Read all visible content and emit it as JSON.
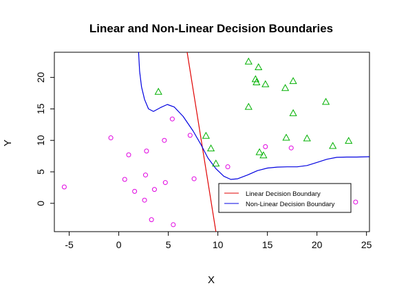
{
  "chart_data": {
    "type": "scatter",
    "title": "Linear and Non-Linear Decision Boundaries",
    "xlabel": "X",
    "ylabel": "Y",
    "xlim": [
      -6.5,
      25.3
    ],
    "ylim": [
      -4.5,
      24
    ],
    "xticks": [
      -5,
      0,
      5,
      10,
      15,
      20,
      25
    ],
    "yticks": [
      0,
      5,
      10,
      15,
      20
    ],
    "grid": false,
    "legend_position": "bottom-right",
    "colors": {
      "class_circle": "#e000e0",
      "class_triangle": "#00b000",
      "linear": "#e00000",
      "nonlinear": "#0000e0"
    },
    "series": [
      {
        "marker": "circle",
        "color": "#e000e0",
        "points": [
          [
            -5.5,
            2.6
          ],
          [
            -0.8,
            10.4
          ],
          [
            0.6,
            3.8
          ],
          [
            1.0,
            7.7
          ],
          [
            1.6,
            1.9
          ],
          [
            2.6,
            0.5
          ],
          [
            2.7,
            4.5
          ],
          [
            2.8,
            8.3
          ],
          [
            3.3,
            -2.6
          ],
          [
            3.6,
            2.2
          ],
          [
            4.6,
            10.0
          ],
          [
            4.7,
            3.3
          ],
          [
            5.4,
            13.4
          ],
          [
            5.5,
            -3.4
          ],
          [
            7.2,
            10.8
          ],
          [
            7.6,
            3.9
          ],
          [
            11.0,
            5.8
          ],
          [
            14.8,
            9.0
          ],
          [
            17.4,
            8.8
          ],
          [
            23.9,
            0.2
          ]
        ]
      },
      {
        "marker": "triangle",
        "color": "#00b000",
        "points": [
          [
            4.0,
            17.7
          ],
          [
            8.8,
            10.7
          ],
          [
            9.3,
            8.7
          ],
          [
            9.8,
            6.3
          ],
          [
            13.1,
            22.5
          ],
          [
            13.1,
            15.3
          ],
          [
            13.8,
            19.7
          ],
          [
            13.9,
            19.2
          ],
          [
            14.1,
            21.6
          ],
          [
            14.2,
            8.1
          ],
          [
            14.6,
            7.6
          ],
          [
            14.8,
            18.9
          ],
          [
            16.8,
            18.3
          ],
          [
            16.9,
            10.4
          ],
          [
            17.6,
            19.4
          ],
          [
            17.6,
            14.3
          ],
          [
            19.0,
            10.3
          ],
          [
            20.9,
            16.1
          ],
          [
            21.6,
            9.1
          ],
          [
            23.2,
            9.9
          ]
        ]
      }
    ],
    "lines": [
      {
        "name": "Linear Decision Boundary",
        "color": "#e00000",
        "points": [
          [
            6.9,
            24.0
          ],
          [
            9.8,
            -4.5
          ]
        ]
      },
      {
        "name": "Non-Linear Decision Boundary",
        "color": "#0000e0",
        "points": [
          [
            2.0,
            24.0
          ],
          [
            2.1,
            21.0
          ],
          [
            2.3,
            18.5
          ],
          [
            2.6,
            16.5
          ],
          [
            3.0,
            15.0
          ],
          [
            3.5,
            14.6
          ],
          [
            4.2,
            15.2
          ],
          [
            4.9,
            15.7
          ],
          [
            5.6,
            15.3
          ],
          [
            6.5,
            13.8
          ],
          [
            7.5,
            11.5
          ],
          [
            8.3,
            9.3
          ],
          [
            9.0,
            7.2
          ],
          [
            9.8,
            5.5
          ],
          [
            10.6,
            4.3
          ],
          [
            11.3,
            3.8
          ],
          [
            12.0,
            3.9
          ],
          [
            13.0,
            4.5
          ],
          [
            14.0,
            5.2
          ],
          [
            15.0,
            5.6
          ],
          [
            16.0,
            5.75
          ],
          [
            17.0,
            5.8
          ],
          [
            18.0,
            5.8
          ],
          [
            19.0,
            6.0
          ],
          [
            20.0,
            6.5
          ],
          [
            21.0,
            7.0
          ],
          [
            22.0,
            7.3
          ],
          [
            23.0,
            7.35
          ],
          [
            24.0,
            7.35
          ],
          [
            25.3,
            7.4
          ]
        ]
      }
    ]
  }
}
